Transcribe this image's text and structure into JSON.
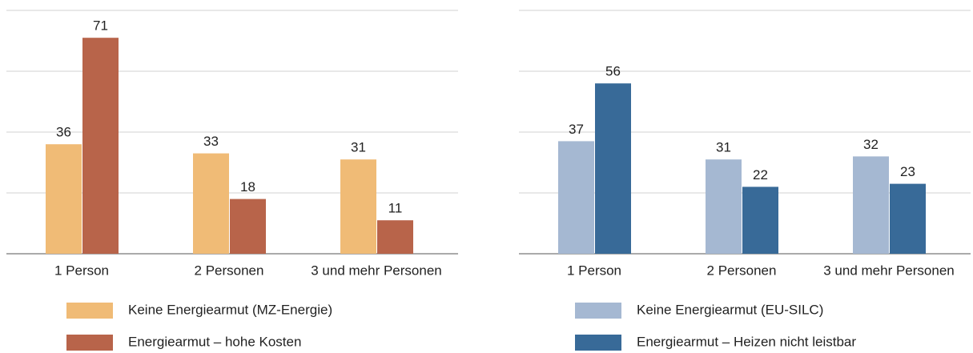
{
  "chart_data": [
    {
      "type": "bar",
      "categories": [
        "1 Person",
        "2 Personen",
        "3 und mehr Personen"
      ],
      "series": [
        {
          "name": "Keine Energiearmut (MZ-Energie)",
          "color": "#f0bb76",
          "values": [
            36,
            33,
            31
          ]
        },
        {
          "name": "Energiearmut – hohe Kosten",
          "color": "#b8644a",
          "values": [
            71,
            18,
            11
          ]
        }
      ],
      "ylim": [
        0,
        80
      ],
      "yticks": [
        0,
        20,
        40,
        60,
        80
      ],
      "grid": true
    },
    {
      "type": "bar",
      "categories": [
        "1 Person",
        "2 Personen",
        "3 und mehr Personen"
      ],
      "series": [
        {
          "name": "Keine Energiearmut (EU-SILC)",
          "color": "#a5b8d2",
          "values": [
            37,
            31,
            32
          ]
        },
        {
          "name": "Energiearmut – Heizen nicht leistbar",
          "color": "#386a98",
          "values": [
            56,
            22,
            23
          ]
        }
      ],
      "ylim": [
        0,
        80
      ],
      "yticks": [
        0,
        20,
        40,
        60,
        80
      ],
      "grid": true
    }
  ]
}
